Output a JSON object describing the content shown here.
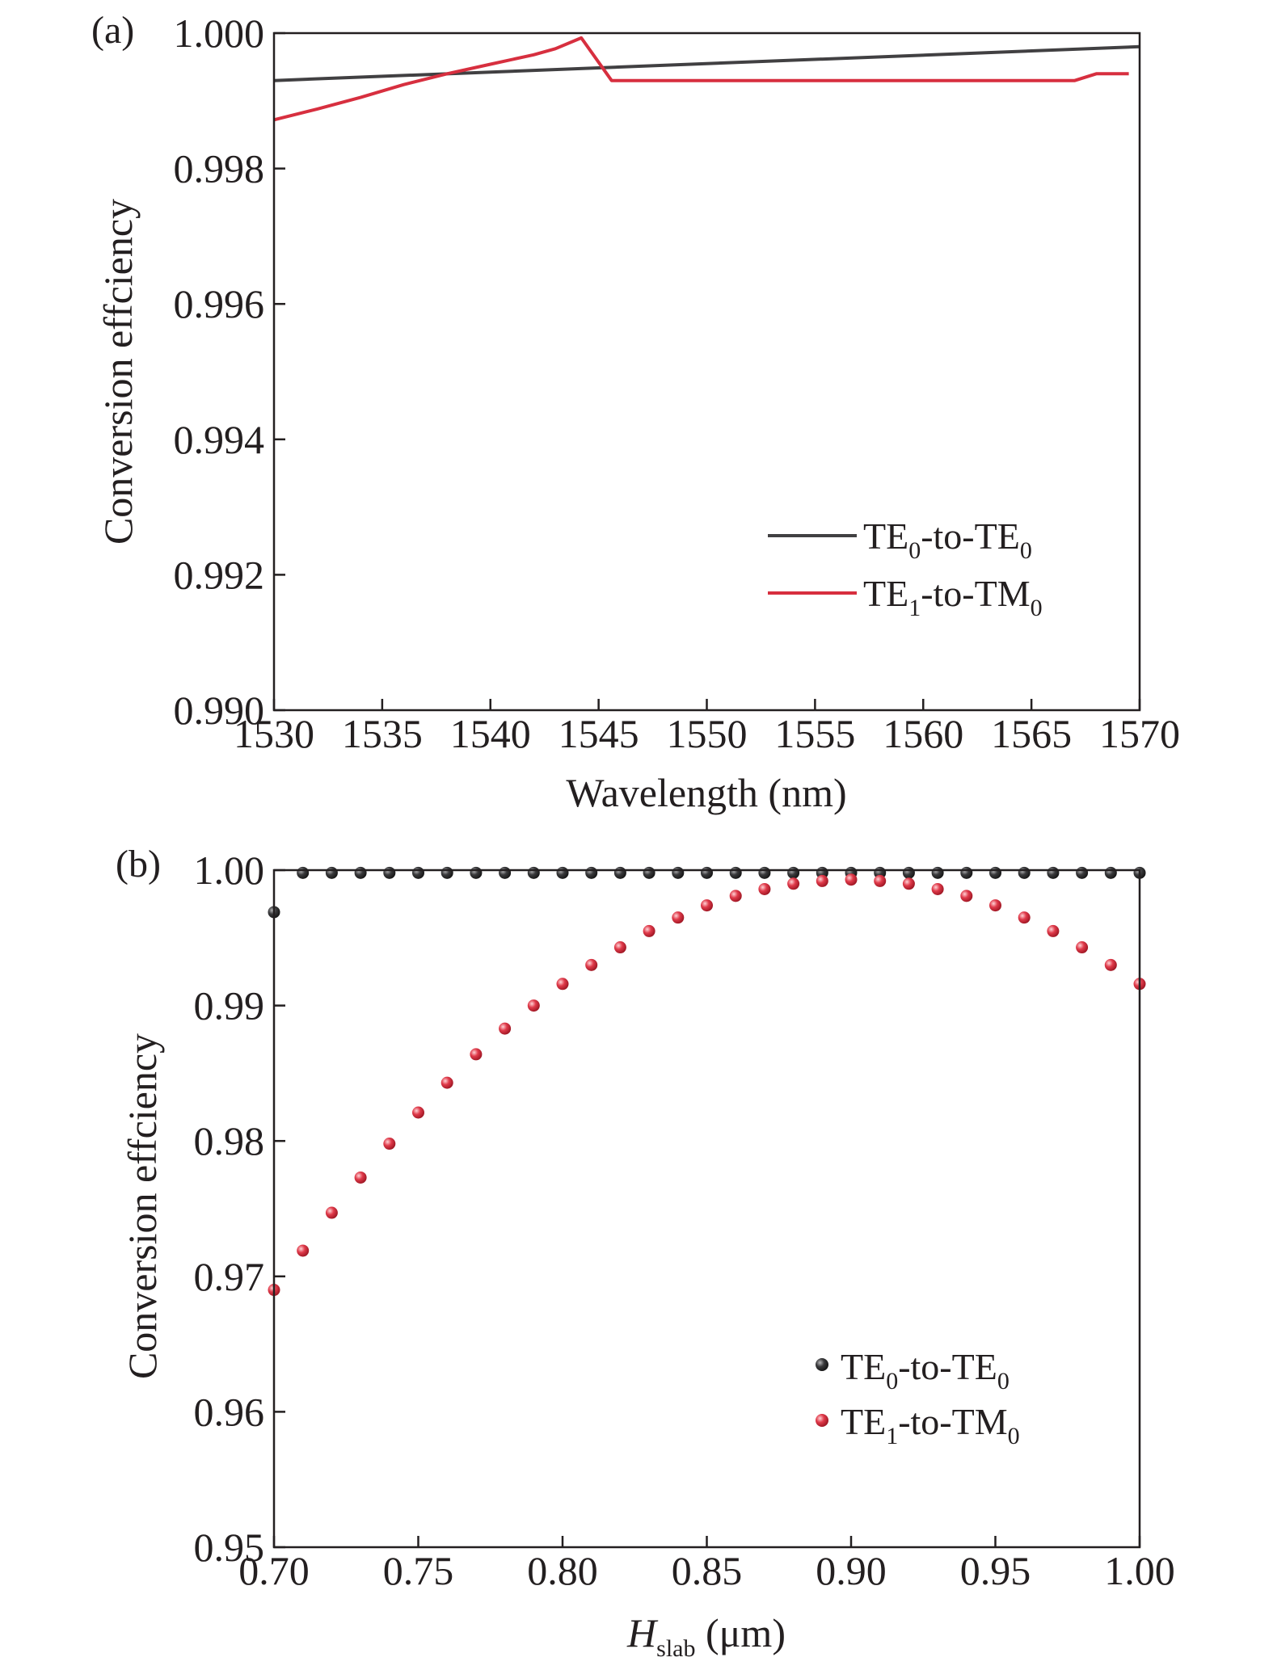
{
  "chart_data": [
    {
      "panel_label": "(a)",
      "type": "line",
      "xlabel": "Wavelength (nm)",
      "ylabel": "Conversion effciency",
      "xlim": [
        1530,
        1570
      ],
      "ylim": [
        0.99,
        1.0
      ],
      "x_ticks": [
        "1530",
        "1535",
        "1540",
        "1545",
        "1550",
        "1555",
        "1560",
        "1565",
        "1570"
      ],
      "y_ticks": [
        "0.990",
        "0.992",
        "0.994",
        "0.996",
        "0.998",
        "1.000"
      ],
      "legend_position": "lower-right",
      "series": [
        {
          "name": "TE0-to-TE0",
          "legend": {
            "base1": "TE",
            "sub1": "0",
            "mid": "-to-TE",
            "sub2": "0"
          },
          "color": "#414042",
          "x": [
            1530,
            1570
          ],
          "y": [
            0.9993,
            0.9998
          ]
        },
        {
          "name": "TE1-to-TM0",
          "legend": {
            "base1": "TE",
            "sub1": "1",
            "mid": "-to-TM",
            "sub2": "0"
          },
          "color": "#d72f3f",
          "x": [
            1530,
            1532,
            1534,
            1536,
            1538,
            1540,
            1542,
            1543,
            1544.2,
            1545.6,
            1567,
            1568,
            1569.5
          ],
          "y": [
            0.99872,
            0.99888,
            0.99905,
            0.99924,
            0.9994,
            0.99954,
            0.99968,
            0.99977,
            0.99993,
            0.9993,
            0.9993,
            0.9994,
            0.9994
          ]
        }
      ]
    },
    {
      "panel_label": "(b)",
      "type": "scatter",
      "xlabel": "H_slab (μm)",
      "xlabel_parts": {
        "italic": "H",
        "sub": "slab",
        "rest": " (μm)"
      },
      "ylabel": "Conversion effciency",
      "xlim": [
        0.7,
        1.0
      ],
      "ylim": [
        0.95,
        1.0
      ],
      "x_ticks": [
        "0.70",
        "0.75",
        "0.80",
        "0.85",
        "0.90",
        "0.95",
        "1.00"
      ],
      "y_ticks": [
        "0.95",
        "0.96",
        "0.97",
        "0.98",
        "0.99",
        "1.00"
      ],
      "legend_position": "lower-right",
      "series": [
        {
          "name": "TE0-to-TE0",
          "legend": {
            "base1": "TE",
            "sub1": "0",
            "mid": "-to-TE",
            "sub2": "0"
          },
          "color": "#3a3a3c",
          "x": [
            0.7,
            0.71,
            0.72,
            0.73,
            0.74,
            0.75,
            0.76,
            0.77,
            0.78,
            0.79,
            0.8,
            0.81,
            0.82,
            0.83,
            0.84,
            0.85,
            0.86,
            0.87,
            0.88,
            0.89,
            0.9,
            0.91,
            0.92,
            0.93,
            0.94,
            0.95,
            0.96,
            0.97,
            0.98,
            0.99,
            1.0
          ],
          "y": [
            0.9969,
            0.9998,
            0.9998,
            0.9998,
            0.9998,
            0.9998,
            0.9998,
            0.9998,
            0.9998,
            0.9998,
            0.9998,
            0.9998,
            0.9998,
            0.9998,
            0.9998,
            0.9998,
            0.9998,
            0.9998,
            0.9998,
            0.9998,
            0.9998,
            0.9998,
            0.9998,
            0.9998,
            0.9998,
            0.9998,
            0.9998,
            0.9998,
            0.9998,
            0.9998,
            0.9998
          ]
        },
        {
          "name": "TE1-to-TM0",
          "legend": {
            "base1": "TE",
            "sub1": "1",
            "mid": "-to-TM",
            "sub2": "0"
          },
          "color": "#d72f3f",
          "x": [
            0.7,
            0.71,
            0.72,
            0.73,
            0.74,
            0.75,
            0.76,
            0.77,
            0.78,
            0.79,
            0.8,
            0.81,
            0.82,
            0.83,
            0.84,
            0.85,
            0.86,
            0.87,
            0.88,
            0.89,
            0.9,
            0.91,
            0.92,
            0.93,
            0.94,
            0.95,
            0.96,
            0.97,
            0.98,
            0.99,
            1.0
          ],
          "y": [
            0.969,
            0.9719,
            0.9747,
            0.9773,
            0.9798,
            0.9821,
            0.9843,
            0.9864,
            0.9883,
            0.99,
            0.9916,
            0.993,
            0.9943,
            0.9955,
            0.9965,
            0.9974,
            0.9981,
            0.9986,
            0.999,
            0.9992,
            0.9993,
            0.9992,
            0.999,
            0.9986,
            0.9981,
            0.9974,
            0.9965,
            0.9955,
            0.9943,
            0.993,
            0.9916
          ]
        }
      ]
    }
  ]
}
